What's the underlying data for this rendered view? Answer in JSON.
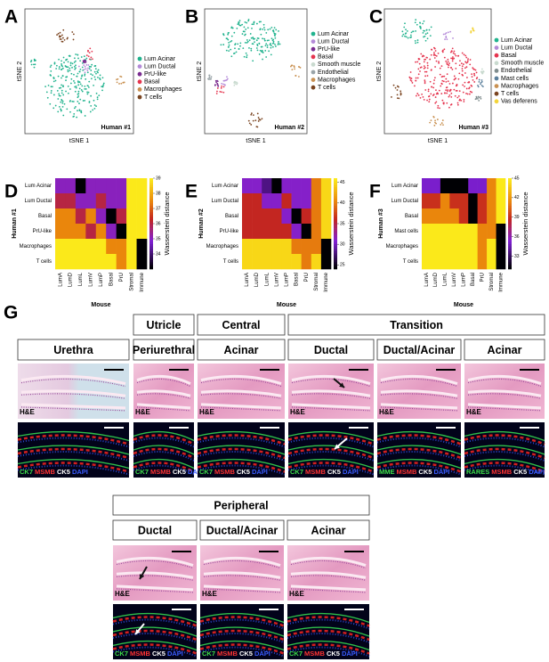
{
  "tsne": [
    {
      "letter": "A",
      "sample": "Human #1",
      "x_label": "tSNE 1",
      "y_label": "tSNE 2",
      "legend": [
        {
          "name": "Lum Acinar",
          "color": "#21b38e"
        },
        {
          "name": "Lum Ductal",
          "color": "#b48ad8"
        },
        {
          "name": "PrU-like",
          "color": "#7a2c90"
        },
        {
          "name": "Basal",
          "color": "#e5344e"
        },
        {
          "name": "Macrophages",
          "color": "#c99152"
        },
        {
          "name": "T cells",
          "color": "#7a4420"
        }
      ]
    },
    {
      "letter": "B",
      "sample": "Human #2",
      "x_label": "tSNE 1",
      "y_label": "tSNE 2",
      "legend": [
        {
          "name": "Lum Acinar",
          "color": "#21b38e"
        },
        {
          "name": "Lum Ductal",
          "color": "#b48ad8"
        },
        {
          "name": "PrU-like",
          "color": "#7a2c90"
        },
        {
          "name": "Basal",
          "color": "#e5344e"
        },
        {
          "name": "Smooth muscle",
          "color": "#c9dacf"
        },
        {
          "name": "Endothelial",
          "color": "#9aa4a8"
        },
        {
          "name": "Macrophages",
          "color": "#c99152"
        },
        {
          "name": "T cells",
          "color": "#7a4420"
        }
      ]
    },
    {
      "letter": "C",
      "sample": "Human #3",
      "x_label": "tSNE 1",
      "y_label": "tSNE 2",
      "legend": [
        {
          "name": "Lum Acinar",
          "color": "#21b38e"
        },
        {
          "name": "Lum Ductal",
          "color": "#b48ad8"
        },
        {
          "name": "Basal",
          "color": "#e5344e"
        },
        {
          "name": "Smooth muscle",
          "color": "#c9dacf"
        },
        {
          "name": "Endothelial",
          "color": "#7f8c8d"
        },
        {
          "name": "Mast cells",
          "color": "#5b7f9c"
        },
        {
          "name": "Macrophages",
          "color": "#c99152"
        },
        {
          "name": "T cells",
          "color": "#7a4420"
        },
        {
          "name": "Vas deferens",
          "color": "#f3d43a"
        }
      ]
    }
  ],
  "heatmaps": [
    {
      "letter": "D",
      "sample": "Human #1",
      "x_label": "Mouse",
      "rows": [
        "Lum Acinar",
        "Lum Ductal",
        "Basal",
        "PrU-like",
        "Macrophages",
        "T cells"
      ],
      "columns": [
        "LumA",
        "LumD",
        "LumL",
        "LumV",
        "LumP",
        "Basal",
        "PrU",
        "Stromal",
        "Immune"
      ],
      "values": [
        [
          35,
          35,
          33,
          35,
          35,
          35,
          35,
          39,
          39
        ],
        [
          36,
          36,
          35,
          35,
          36,
          35,
          35,
          39,
          39
        ],
        [
          37.5,
          37.5,
          36,
          37.5,
          35,
          33,
          36,
          39,
          39
        ],
        [
          37.5,
          37.5,
          37.5,
          36,
          37.5,
          35,
          33,
          39,
          39
        ],
        [
          39,
          39,
          39,
          39,
          39,
          37.5,
          37.5,
          39,
          33
        ],
        [
          39,
          39,
          39,
          39,
          39,
          39,
          37.5,
          39,
          33
        ]
      ],
      "colorbar": {
        "label": "Wasserstein distance",
        "lim": [
          33,
          39
        ],
        "ticks": [
          34,
          35,
          36,
          37,
          38,
          39
        ]
      }
    },
    {
      "letter": "E",
      "sample": "Human #2",
      "x_label": "Mouse",
      "rows": [
        "Lum Acinar",
        "Lum Ductal",
        "Basal",
        "PrU-like",
        "Macrophages",
        "T cells"
      ],
      "columns": [
        "LumA",
        "LumD",
        "LumL",
        "LumV",
        "LumP",
        "Basal",
        "PrU",
        "Stromal",
        "Immune"
      ],
      "values": [
        [
          31,
          31,
          28,
          24,
          31,
          31,
          31,
          40,
          45
        ],
        [
          36,
          36,
          31,
          31,
          36,
          31,
          31,
          40,
          45
        ],
        [
          36,
          36,
          36,
          36,
          31,
          24,
          36,
          40,
          45
        ],
        [
          36,
          36,
          36,
          36,
          36,
          31,
          24,
          40,
          45
        ],
        [
          45,
          45,
          45,
          45,
          45,
          40,
          40,
          40,
          24
        ],
        [
          45,
          45,
          45,
          45,
          45,
          45,
          40,
          45,
          24
        ]
      ],
      "colorbar": {
        "label": "Wasserstein distance",
        "lim": [
          24,
          46
        ],
        "ticks": [
          25,
          30,
          35,
          40,
          45
        ]
      }
    },
    {
      "letter": "F",
      "sample": "Human #3",
      "x_label": "Mouse",
      "rows": [
        "Lum Acinar",
        "Lum Ductal",
        "Basal",
        "Mast cells",
        "Macrophages",
        "T cells"
      ],
      "columns": [
        "LumA",
        "LumD",
        "LumL",
        "LumV",
        "LumP",
        "Basal",
        "PrU",
        "Stromal",
        "Immune"
      ],
      "values": [
        [
          35,
          35,
          31,
          31,
          31,
          35,
          35,
          41.5,
          45
        ],
        [
          39,
          39,
          41.5,
          39,
          39,
          31,
          39,
          41.5,
          45
        ],
        [
          41.5,
          41.5,
          41.5,
          41.5,
          39,
          31,
          39,
          41.5,
          45
        ],
        [
          45,
          45,
          45,
          45,
          45,
          45,
          41.5,
          41.5,
          31
        ],
        [
          45,
          45,
          45,
          45,
          45,
          45,
          41.5,
          45,
          31
        ],
        [
          45,
          45,
          45,
          45,
          45,
          45,
          41.5,
          45,
          31
        ]
      ],
      "colorbar": {
        "label": "Wasserstein distance",
        "lim": [
          31,
          45
        ],
        "ticks": [
          33,
          36,
          39,
          42,
          45
        ]
      }
    }
  ],
  "histology": {
    "letter": "G",
    "top_headers": [
      "Utricle",
      "Central",
      "Transition"
    ],
    "columns": [
      {
        "title": "Urethra",
        "he": "H&E",
        "stains": [
          {
            "text": "CK7",
            "color": "#3ddc4a"
          },
          {
            "text": "MSMB",
            "color": "#ff3333"
          },
          {
            "text": "CK5",
            "color": "#ffffff"
          },
          {
            "text": "DAPI",
            "color": "#3a5cff"
          }
        ]
      },
      {
        "title": "Periurethral",
        "he": "H&E",
        "stains": [
          {
            "text": "CK7",
            "color": "#3ddc4a"
          },
          {
            "text": "MSMB",
            "color": "#ff3333"
          },
          {
            "text": "CK5",
            "color": "#ffffff"
          },
          {
            "text": "DAPI",
            "color": "#3a5cff"
          }
        ]
      },
      {
        "title": "Acinar",
        "he": "H&E",
        "stains": [
          {
            "text": "CK7",
            "color": "#3ddc4a"
          },
          {
            "text": "MSMB",
            "color": "#ff3333"
          },
          {
            "text": "CK5",
            "color": "#ffffff"
          },
          {
            "text": "DAPI",
            "color": "#3a5cff"
          }
        ]
      },
      {
        "title": "Ductal",
        "he": "H&E",
        "stains": [
          {
            "text": "CK7",
            "color": "#3ddc4a"
          },
          {
            "text": "MSMB",
            "color": "#ff3333"
          },
          {
            "text": "CK5",
            "color": "#ffffff"
          },
          {
            "text": "DAPI",
            "color": "#3a5cff"
          }
        ]
      },
      {
        "title": "Ductal/Acinar",
        "he": "H&E",
        "stains": [
          {
            "text": "MME",
            "color": "#3ddc4a"
          },
          {
            "text": "MSMB",
            "color": "#ff3333"
          },
          {
            "text": "CK5",
            "color": "#ffffff"
          },
          {
            "text": "DAPI",
            "color": "#3a5cff"
          }
        ]
      },
      {
        "title": "Acinar",
        "he": "H&E",
        "stains": [
          {
            "text": "RARES",
            "color": "#3ddc4a"
          },
          {
            "text": "MSMB",
            "color": "#ff3333"
          },
          {
            "text": "CK5",
            "color": "#ffffff"
          },
          {
            "text": "DAPI",
            "color": "#3a5cff"
          }
        ]
      }
    ],
    "peripheral": {
      "header": "Peripheral",
      "columns": [
        {
          "title": "Ductal",
          "he": "H&E",
          "stains": [
            {
              "text": "CK7",
              "color": "#3ddc4a"
            },
            {
              "text": "MSMB",
              "color": "#ff3333"
            },
            {
              "text": "CK5",
              "color": "#ffffff"
            },
            {
              "text": "DAPI",
              "color": "#3a5cff"
            }
          ]
        },
        {
          "title": "Ductal/Acinar",
          "he": "H&E",
          "stains": [
            {
              "text": "CK7",
              "color": "#3ddc4a"
            },
            {
              "text": "MSMB",
              "color": "#ff3333"
            },
            {
              "text": "CK5",
              "color": "#ffffff"
            },
            {
              "text": "DAPI",
              "color": "#3a5cff"
            }
          ]
        },
        {
          "title": "Acinar",
          "he": "H&E",
          "stains": [
            {
              "text": "CK7",
              "color": "#3ddc4a"
            },
            {
              "text": "MSMB",
              "color": "#ff3333"
            },
            {
              "text": "CK5",
              "color": "#ffffff"
            },
            {
              "text": "DAPI",
              "color": "#3a5cff"
            }
          ]
        }
      ]
    }
  }
}
